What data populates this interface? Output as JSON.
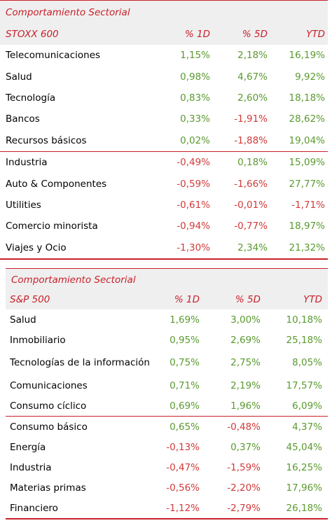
{
  "stoxx": {
    "title": "Comportamiento Sectorial",
    "index": "STOXX 600",
    "col_1d": "% 1D",
    "col_5d": "% 5D",
    "col_ytd": "YTD",
    "rows": [
      {
        "name": "Telecomunicaciones",
        "d1": "1,15%",
        "d5": "2,18%",
        "ytd": "16,19%"
      },
      {
        "name": "Salud",
        "d1": "0,98%",
        "d5": "4,67%",
        "ytd": "9,92%"
      },
      {
        "name": "Tecnología",
        "d1": "0,83%",
        "d5": "2,60%",
        "ytd": "18,18%"
      },
      {
        "name": "Bancos",
        "d1": "0,33%",
        "d5": "-1,91%",
        "ytd": "28,62%"
      },
      {
        "name": "Recursos básicos",
        "d1": "0,02%",
        "d5": "-1,88%",
        "ytd": "19,04%"
      },
      {
        "name": "Industria",
        "d1": "-0,49%",
        "d5": "0,18%",
        "ytd": "15,09%"
      },
      {
        "name": "Auto & Componentes",
        "d1": "-0,59%",
        "d5": "-1,66%",
        "ytd": "27,77%"
      },
      {
        "name": "Utilities",
        "d1": "-0,61%",
        "d5": "-0,01%",
        "ytd": "-1,71%"
      },
      {
        "name": "Comercio minorista",
        "d1": "-0,94%",
        "d5": "-0,77%",
        "ytd": "18,97%"
      },
      {
        "name": "Viajes y Ocio",
        "d1": "-1,30%",
        "d5": "2,34%",
        "ytd": "21,32%"
      }
    ]
  },
  "sp": {
    "title": "Comportamiento Sectorial",
    "index": "S&P 500",
    "col_1d": "% 1D",
    "col_5d": "% 5D",
    "col_ytd": "YTD",
    "rows": [
      {
        "name": "Salud",
        "d1": "1,69%",
        "d5": "3,00%",
        "ytd": "10,18%"
      },
      {
        "name": "Inmobiliario",
        "d1": "0,95%",
        "d5": "2,69%",
        "ytd": "25,18%"
      },
      {
        "name": "Tecnologías de la información",
        "d1": "0,75%",
        "d5": "2,75%",
        "ytd": "8,05%"
      },
      {
        "name": "Comunicaciones",
        "d1": "0,71%",
        "d5": "2,19%",
        "ytd": "17,57%"
      },
      {
        "name": "Consumo cíclico",
        "d1": "0,69%",
        "d5": "1,96%",
        "ytd": "6,09%"
      },
      {
        "name": "Consumo básico",
        "d1": "0,65%",
        "d5": "-0,48%",
        "ytd": "4,37%"
      },
      {
        "name": "Energía",
        "d1": "-0,13%",
        "d5": "0,37%",
        "ytd": "45,04%"
      },
      {
        "name": "Industria",
        "d1": "-0,47%",
        "d5": "-1,59%",
        "ytd": "16,25%"
      },
      {
        "name": "Materias primas",
        "d1": "-0,56%",
        "d5": "-2,20%",
        "ytd": "17,96%"
      },
      {
        "name": "Financiero",
        "d1": "-1,12%",
        "d5": "-2,79%",
        "ytd": "26,18%"
      }
    ]
  },
  "colors": {
    "accent": "#c8202a",
    "positive": "#5a9a2f",
    "negative": "#d23a3a",
    "header_bg": "#efefef"
  }
}
